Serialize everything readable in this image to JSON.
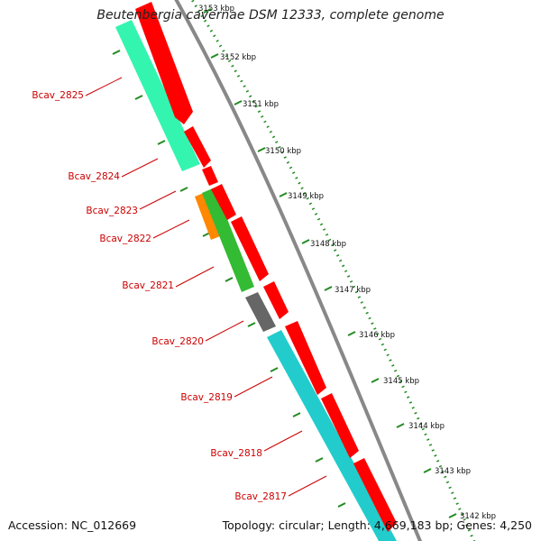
{
  "title": "Beutenbergia cavernae DSM 12333, complete genome",
  "footer": {
    "accession": "Accession: NC_012669",
    "summary": "Topology: circular; Length: 4,669,183 bp; Genes: 4,250"
  },
  "scale_labels": [
    "3153 kbp",
    "3152 kbp",
    "3151 kbp",
    "3150 kbp",
    "3149 kbp",
    "3148 kbp",
    "3147 kbp",
    "3146 kbp",
    "3145 kbp",
    "3144 kbp",
    "3143 kbp",
    "3142 kbp"
  ],
  "gene_labels": [
    "Bcav_2825",
    "Bcav_2824",
    "Bcav_2823",
    "Bcav_2822",
    "Bcav_2821",
    "Bcav_2820",
    "Bcav_2819",
    "Bcav_2818",
    "Bcav_2817"
  ],
  "colors": {
    "cds_arrow": "#ff0000",
    "backbone": "#888888",
    "scale_dots": "#228b22",
    "label": "#cc0000",
    "seafoam": "#33f5b0",
    "orange": "#ff8800",
    "green": "#33bb33",
    "gray": "#666666",
    "cyan": "#22cccc"
  }
}
